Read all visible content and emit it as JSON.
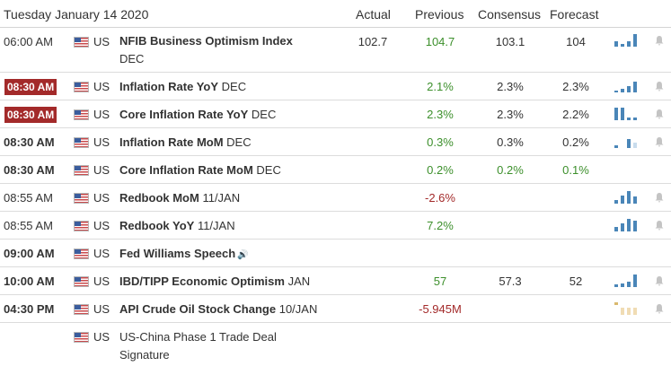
{
  "header": {
    "date": "Tuesday January 14 2020",
    "col_actual": "Actual",
    "col_previous": "Previous",
    "col_consensus": "Consensus",
    "col_forecast": "Forecast"
  },
  "colors": {
    "bar_blue": "#4a86b8",
    "bar_light": "#c9dced",
    "bar_tan": "#f0dcb4",
    "bar_tan_dark": "#d9b96e",
    "badge_red": "#a32a2a",
    "green": "#3c8f2b"
  },
  "rows": [
    {
      "time": "06:00 AM",
      "country": "US",
      "event_bold": "NFIB Business Optimism Index",
      "event_period": "DEC",
      "actual": "102.7",
      "previous": "104.7",
      "consensus": "103.1",
      "forecast": "104"
    },
    {
      "time": "08:30 AM",
      "country": "US",
      "event_bold": "Inflation Rate YoY",
      "event_period": "DEC",
      "actual": "",
      "previous": "2.1%",
      "consensus": "2.3%",
      "forecast": "2.3%"
    },
    {
      "time": "08:30 AM",
      "country": "US",
      "event_bold": "Core Inflation Rate YoY",
      "event_period": "DEC",
      "actual": "",
      "previous": "2.3%",
      "consensus": "2.3%",
      "forecast": "2.2%"
    },
    {
      "time": "08:30 AM",
      "country": "US",
      "event_bold": "Inflation Rate MoM",
      "event_period": "DEC",
      "actual": "",
      "previous": "0.3%",
      "consensus": "0.3%",
      "forecast": "0.2%"
    },
    {
      "time": "08:30 AM",
      "country": "US",
      "event_bold": "Core Inflation Rate MoM",
      "event_period": "DEC",
      "actual": "",
      "previous": "0.2%",
      "consensus": "0.2%",
      "forecast": "0.1%"
    },
    {
      "time": "08:55 AM",
      "country": "US",
      "event_bold": "Redbook MoM",
      "event_period": "11/JAN",
      "actual": "",
      "previous": "-2.6%",
      "consensus": "",
      "forecast": ""
    },
    {
      "time": "08:55 AM",
      "country": "US",
      "event_bold": "Redbook YoY",
      "event_period": "11/JAN",
      "actual": "",
      "previous": "7.2%",
      "consensus": "",
      "forecast": ""
    },
    {
      "time": "09:00 AM",
      "country": "US",
      "event_bold": "Fed Williams Speech",
      "event_period": "",
      "actual": "",
      "previous": "",
      "consensus": "",
      "forecast": ""
    },
    {
      "time": "10:00 AM",
      "country": "US",
      "event_bold": "IBD/TIPP Economic Optimism",
      "event_period": "JAN",
      "actual": "",
      "previous": "57",
      "consensus": "57.3",
      "forecast": "52"
    },
    {
      "time": "04:30 PM",
      "country": "US",
      "event_bold": "API Crude Oil Stock Change",
      "event_period": "10/JAN",
      "actual": "",
      "previous": "-5.945M",
      "consensus": "",
      "forecast": ""
    },
    {
      "time": "",
      "country": "US",
      "event_bold": "",
      "event_line1": "US-China Phase 1 Trade Deal",
      "event_line2": "Signature",
      "actual": "",
      "previous": "",
      "consensus": "",
      "forecast": ""
    }
  ]
}
